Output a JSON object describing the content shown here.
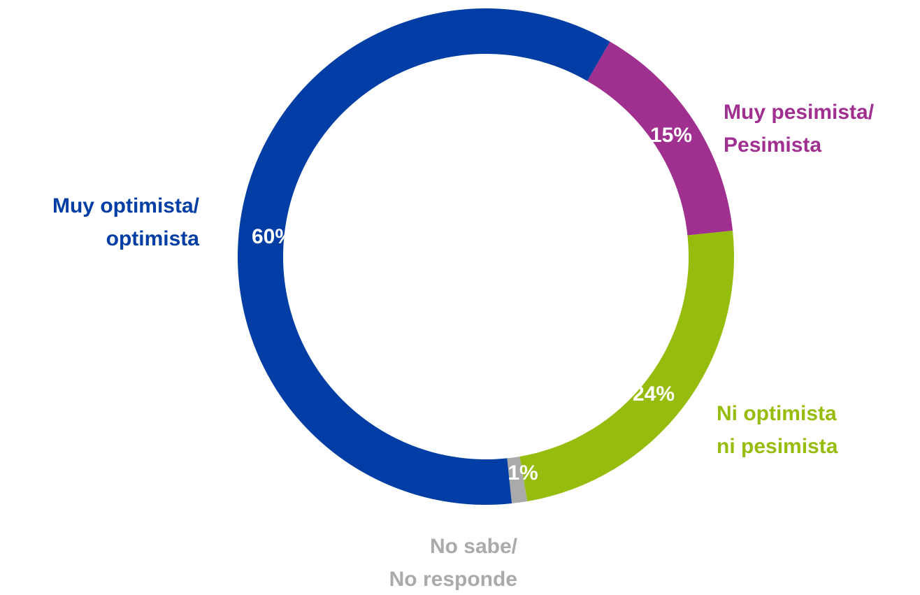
{
  "chart_data": {
    "type": "donut",
    "categories": [
      [
        "Muy pesimista/",
        "Pesimista"
      ],
      [
        "Ni optimista",
        "ni pesimista"
      ],
      [
        "No sabe/",
        "No responde"
      ],
      [
        "Muy optimista/",
        "optimista"
      ]
    ],
    "values": [
      15,
      24,
      1,
      60
    ],
    "value_labels": [
      "15%",
      "24%",
      "1%",
      "60%"
    ],
    "colors": [
      "#a03090",
      "#96bd0d",
      "#aaaaaa",
      "#003da5"
    ]
  }
}
